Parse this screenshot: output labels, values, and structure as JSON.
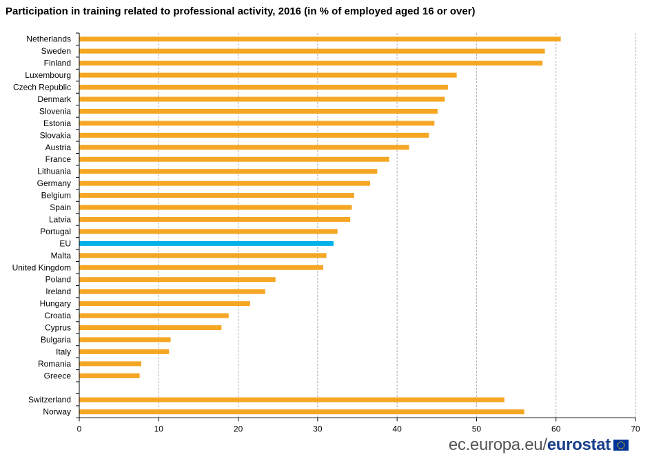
{
  "chart_data": {
    "type": "bar",
    "orientation": "horizontal",
    "title": "Participation in training related to professional activity, 2016 (in % of employed aged 16 or over)",
    "categories": [
      "Netherlands",
      "Sweden",
      "Finland",
      "Luxembourg",
      "Czech Republic",
      "Denmark",
      "Slovenia",
      "Estonia",
      "Slovakia",
      "Austria",
      "France",
      "Lithuania",
      "Germany",
      "Belgium",
      "Spain",
      "Latvia",
      "Portugal",
      "EU",
      "Malta",
      "United Kingdom",
      "Poland",
      "Ireland",
      "Hungary",
      "Croatia",
      "Cyprus",
      "Bulgaria",
      "Italy",
      "Romania",
      "Greece",
      "",
      "Switzerland",
      "Norway"
    ],
    "values": [
      60.6,
      58.6,
      58.3,
      47.5,
      46.4,
      46.0,
      45.1,
      44.7,
      44.0,
      41.5,
      39.0,
      37.5,
      36.6,
      34.6,
      34.3,
      34.1,
      32.5,
      32.0,
      31.1,
      30.7,
      24.7,
      23.4,
      21.5,
      18.8,
      17.9,
      11.5,
      11.3,
      7.8,
      7.6,
      null,
      53.5,
      56.0
    ],
    "highlight_category": "EU",
    "xlim": [
      0,
      70
    ],
    "xticks": [
      0,
      10,
      20,
      30,
      40,
      50,
      60,
      70
    ],
    "grid": "vertical dashed",
    "colors": {
      "bar": "#f5a623",
      "highlight": "#00b0e8",
      "grid": "#b0b0b0",
      "axis": "#000000"
    }
  },
  "footer": {
    "url": "ec.europa.eu/",
    "brand": "eurostat"
  },
  "colors": {
    "flag_blue": "#003399",
    "flag_star": "#ffcc00"
  }
}
